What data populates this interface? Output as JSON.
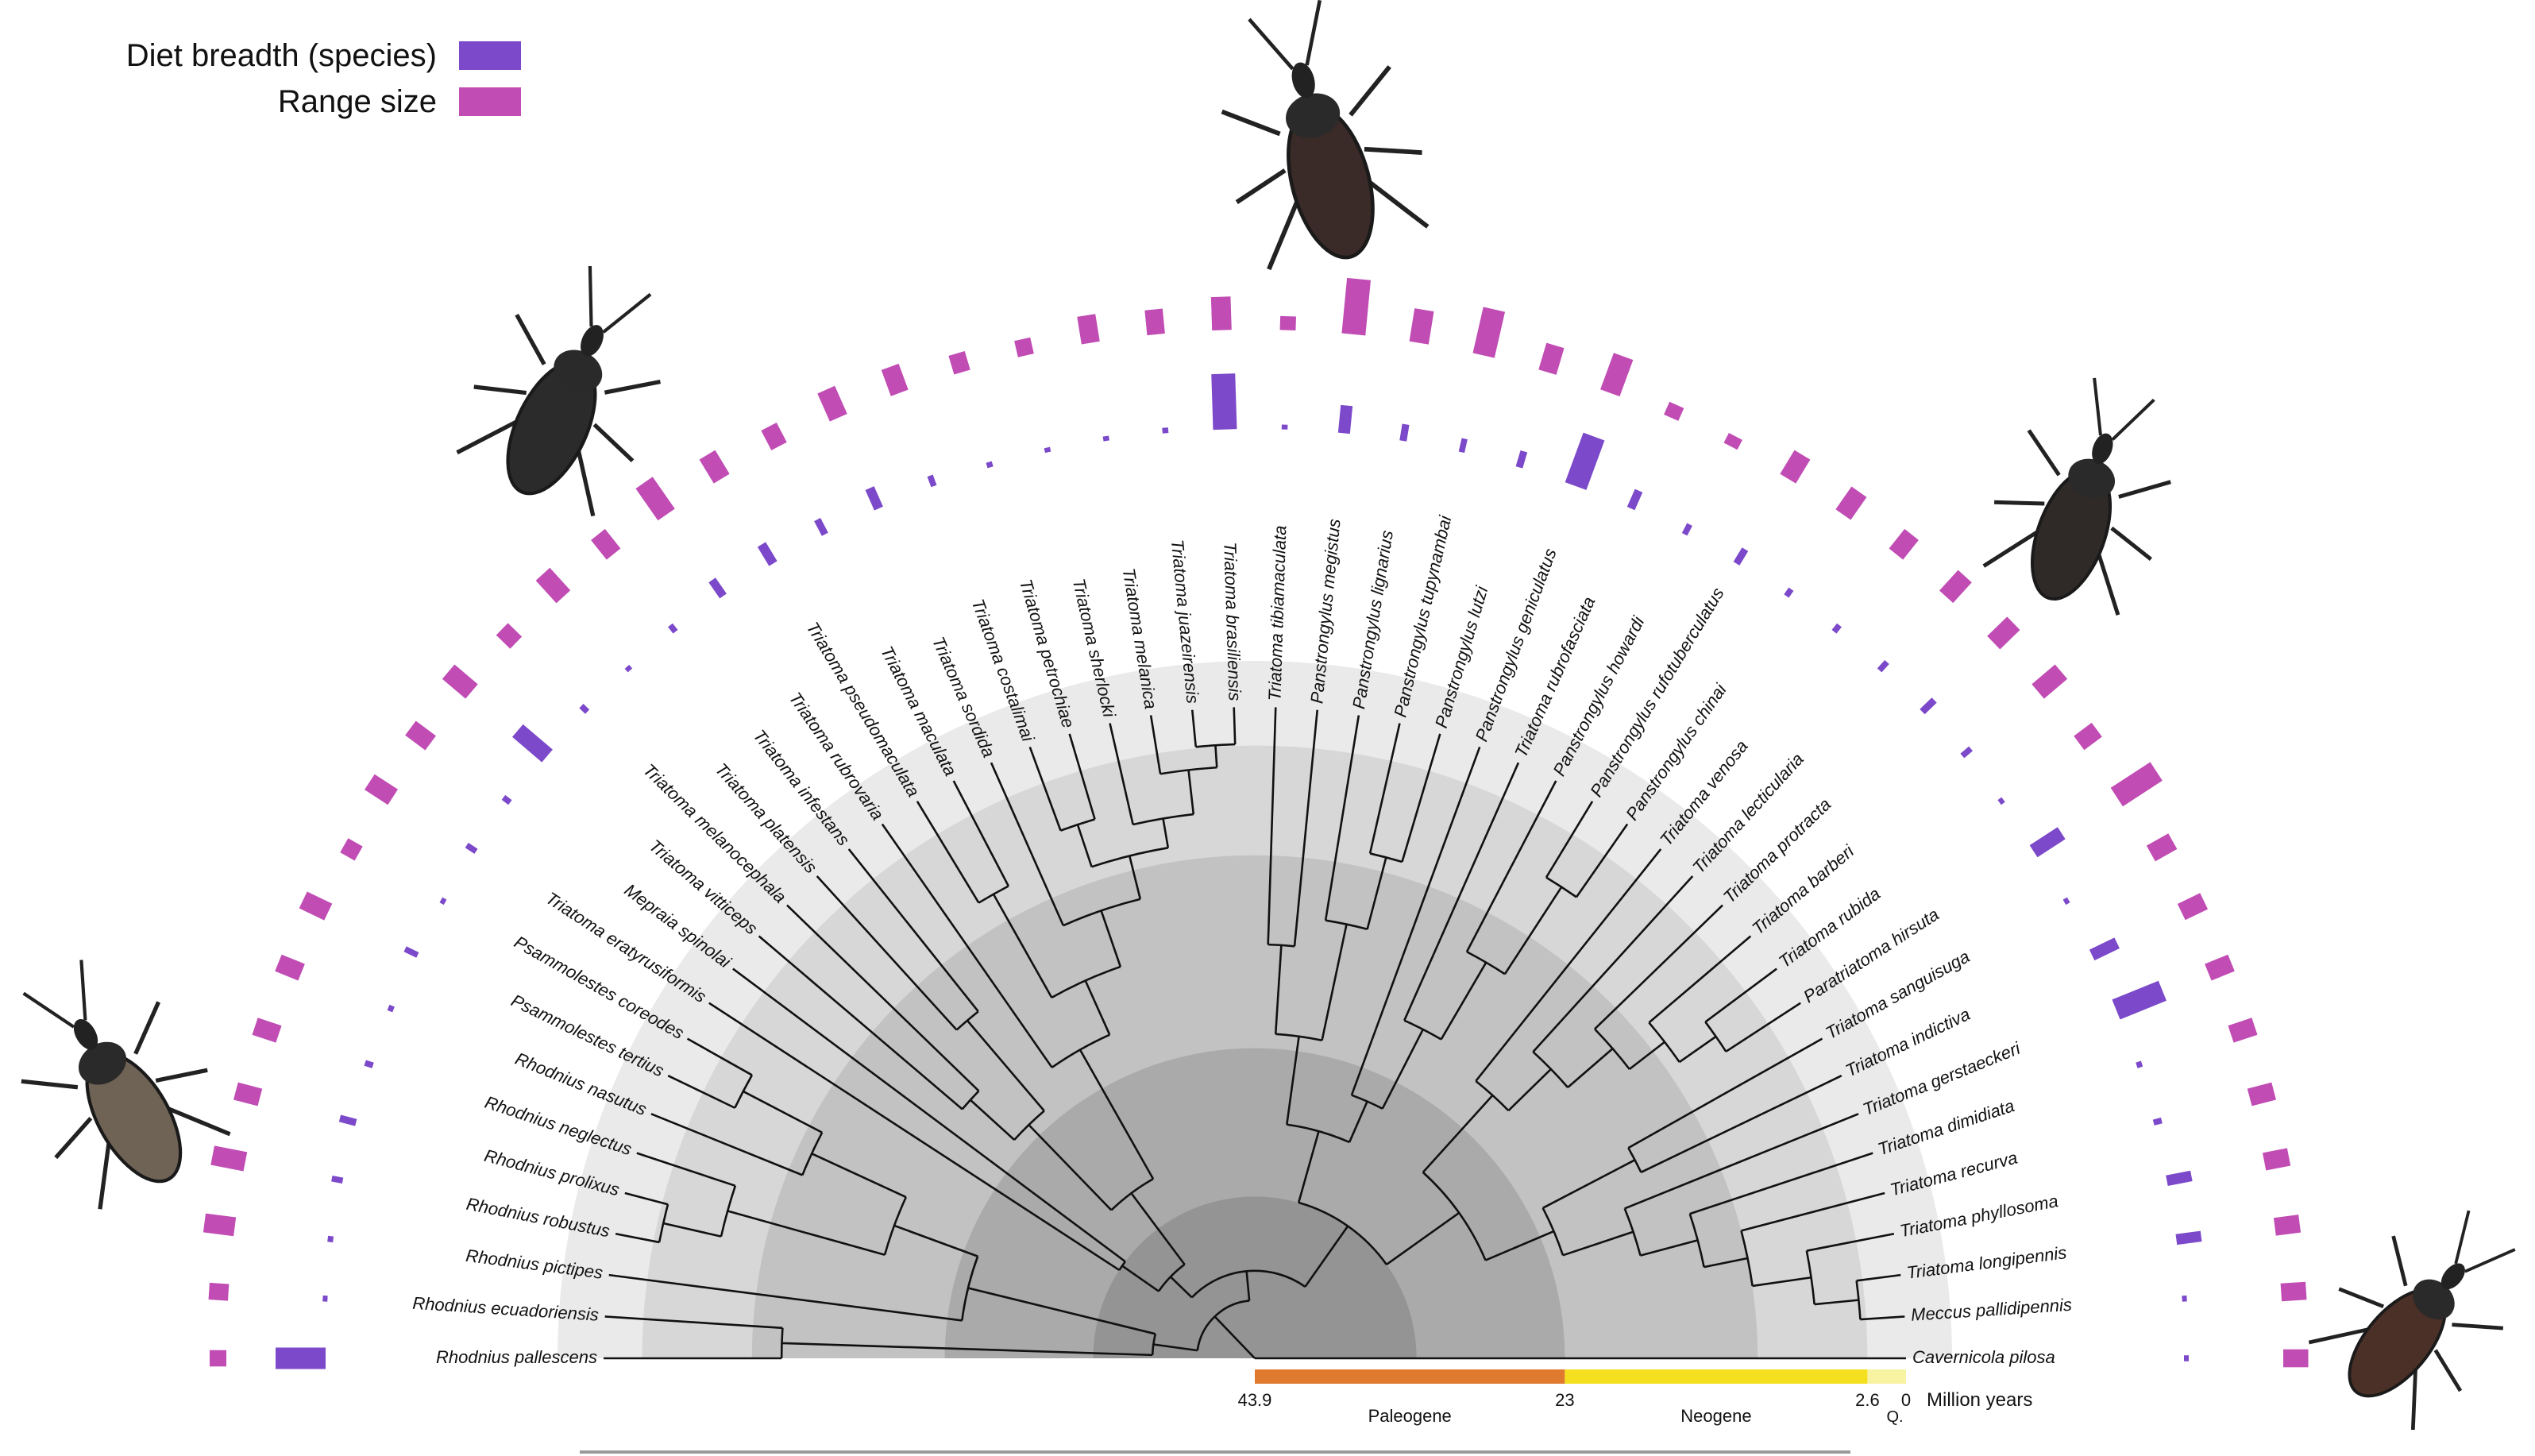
{
  "legend": {
    "items": [
      {
        "label": "Diet breadth (species)",
        "color": "#7b49c9"
      },
      {
        "label": "Range size",
        "color": "#c04cb4"
      }
    ]
  },
  "colors": {
    "diet": "#7b49c9",
    "range": "#c04cb4",
    "paleogene": "#e07a2e",
    "neogene": "#f5e020",
    "quaternary": "#f7f3a3",
    "band_light": "#eaeaea",
    "band_mid": "#d7d7d7",
    "band_dark": "#c2c2c2",
    "band_darker": "#aaaaaa",
    "band_darkest": "#949494"
  },
  "taxa": [
    "Rhodnius pallescens",
    "Rhodnius ecuadoriensis",
    "Rhodnius pictipes",
    "Rhodnius robustus",
    "Rhodnius prolixus",
    "Rhodnius neglectus",
    "Rhodnius nasutus",
    "Psammolestes tertius",
    "Psammolestes coreodes",
    "Triatoma eratyrusiformis",
    "Mepraia spinolai",
    "Triatoma vitticeps",
    "Triatoma melanocephala",
    "Triatoma platensis",
    "Triatoma infestans",
    "Triatoma rubrovaria",
    "Triatoma pseudomaculata",
    "Triatoma maculata",
    "Triatoma sordida",
    "Triatoma costalimai",
    "Triatoma petrochiae",
    "Triatoma sherlocki",
    "Triatoma melanica",
    "Triatoma juazeirensis",
    "Triatoma brasiliensis",
    "Triatoma tibiamaculata",
    "Panstrongylus megistus",
    "Panstrongylus lignarius",
    "Panstrongylus tupynambai",
    "Panstrongylus lutzi",
    "Panstrongylus geniculatus",
    "Triatoma rubrofasciata",
    "Panstrongylus howardi",
    "Panstrongylus rufotuberculatus",
    "Panstrongylus chinai",
    "Triatoma venosa",
    "Triatoma lecticularia",
    "Triatoma protracta",
    "Triatoma barberi",
    "Triatoma rubida",
    "Paratriatoma hirsuta",
    "Triatoma sanguisuga",
    "Triatoma indictiva",
    "Triatoma gerstaeckeri",
    "Triatoma dimidiata",
    "Triatoma recurva",
    "Triatoma phyllosoma",
    "Triatoma longipennis",
    "Meccus pallidipennis",
    "Cavernicola pilosa"
  ],
  "diet_breadth": [
    0.9,
    0.05,
    0.1,
    0.2,
    0.3,
    0.15,
    0.1,
    0.25,
    0.05,
    0.2,
    0.15,
    0.7,
    0.15,
    0.05,
    0.15,
    0.35,
    0.4,
    0.3,
    0.4,
    0.2,
    0.1,
    0.05,
    0.05,
    0.1,
    1.0,
    0.05,
    0.5,
    0.3,
    0.25,
    0.3,
    0.95,
    0.35,
    0.2,
    0.3,
    0.15,
    0.15,
    0.2,
    0.3,
    0.2,
    0.05,
    0.6,
    0.05,
    0.5,
    0.9,
    0.1,
    0.15,
    0.45,
    0.45,
    0.05,
    0.02
  ],
  "range_size": [
    0.3,
    0.35,
    0.55,
    0.6,
    0.45,
    0.45,
    0.45,
    0.5,
    0.3,
    0.5,
    0.45,
    0.55,
    0.35,
    0.55,
    0.45,
    0.7,
    0.5,
    0.4,
    0.55,
    0.5,
    0.35,
    0.3,
    0.5,
    0.45,
    0.6,
    0.25,
    1.0,
    0.6,
    0.85,
    0.5,
    0.7,
    0.25,
    0.2,
    0.5,
    0.5,
    0.45,
    0.5,
    0.5,
    0.55,
    0.4,
    0.85,
    0.45,
    0.45,
    0.45,
    0.45,
    0.45,
    0.45,
    0.45,
    0.45,
    0.45
  ],
  "time_axis": {
    "unit_label": "Million years",
    "ticks": [
      {
        "value": 43.9,
        "label": "43.9"
      },
      {
        "value": 23,
        "label": "23"
      },
      {
        "value": 2.6,
        "label": "2.6"
      },
      {
        "value": 0,
        "label": "0"
      }
    ],
    "periods": [
      {
        "name": "Paleogene",
        "from": 43.9,
        "to": 23
      },
      {
        "name": "Neogene",
        "from": 23,
        "to": 2.6
      },
      {
        "name": "Q.",
        "from": 2.6,
        "to": 0
      }
    ]
  },
  "insects": [
    {
      "icon": "kissing-bug-icon-1",
      "tone": "#6f6355"
    },
    {
      "icon": "kissing-bug-icon-2",
      "tone": "#2b2b2b"
    },
    {
      "icon": "kissing-bug-icon-3",
      "tone": "#3a2a28"
    },
    {
      "icon": "kissing-bug-icon-4",
      "tone": "#2f2a28"
    },
    {
      "icon": "kissing-bug-icon-5",
      "tone": "#4a3026"
    }
  ]
}
